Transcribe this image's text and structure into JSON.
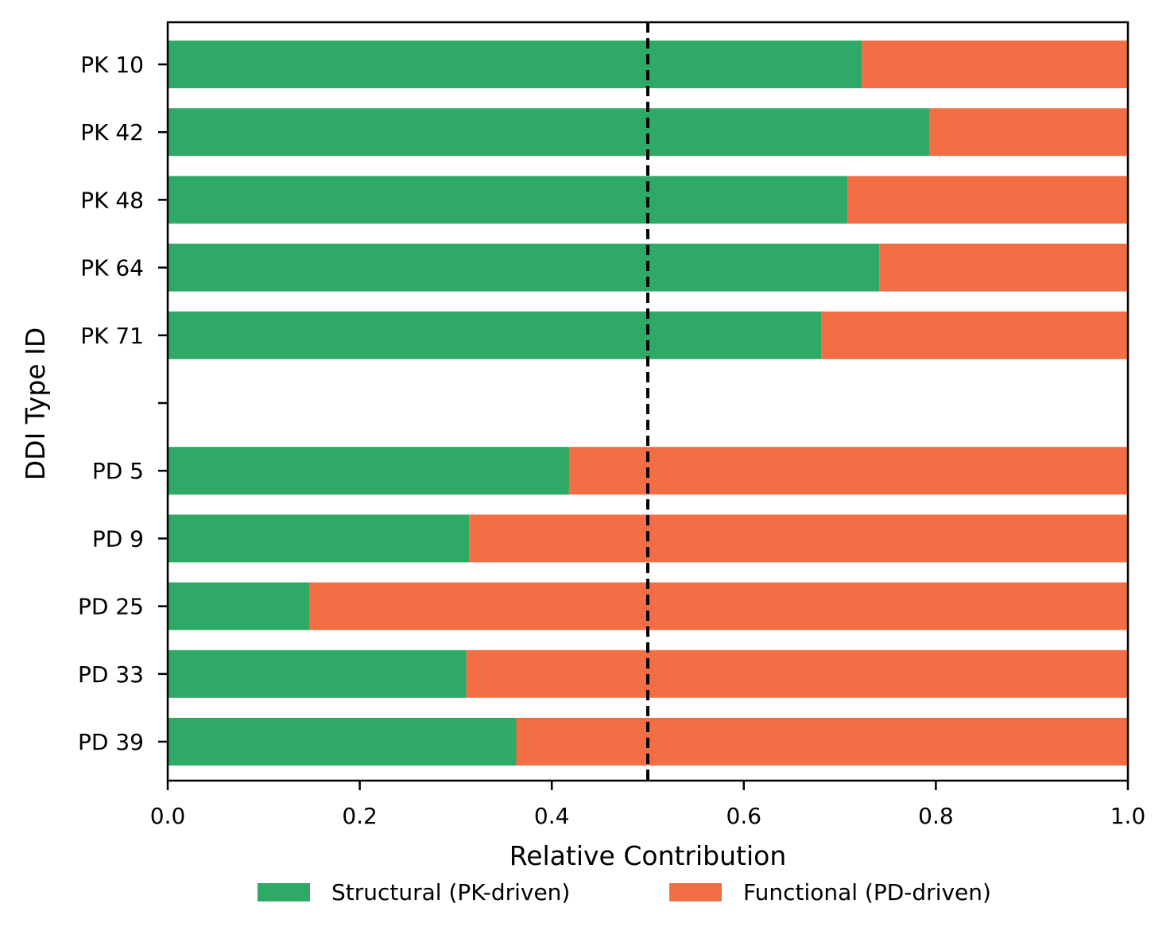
{
  "chart_data": {
    "type": "bar",
    "orientation": "horizontal",
    "stacked": true,
    "categories": [
      "PK 10",
      "PK 42",
      "PK 48",
      "PK 64",
      "PK 71",
      "",
      "PD 5",
      "PD 9",
      "PD 25",
      "PD 33",
      "PD 39"
    ],
    "series": [
      {
        "name": "Structural (PK-driven)",
        "color": "#2eaa66",
        "values": [
          0.723,
          0.793,
          0.708,
          0.741,
          0.681,
          null,
          0.418,
          0.314,
          0.148,
          0.311,
          0.363
        ]
      },
      {
        "name": "Functional (PD-driven)",
        "color": "#f26f46",
        "values": [
          0.277,
          0.207,
          0.292,
          0.259,
          0.319,
          null,
          0.582,
          0.686,
          0.852,
          0.689,
          0.637
        ]
      }
    ],
    "xlabel": "Relative Contribution",
    "ylabel": "DDI Type ID",
    "xlim": [
      0.0,
      1.0
    ],
    "xticks": [
      "0.0",
      "0.2",
      "0.4",
      "0.6",
      "0.8",
      "1.0"
    ],
    "reference_line": {
      "x": 0.5,
      "style": "dashed",
      "color": "#000000"
    },
    "legend": {
      "placement": "bottom-center",
      "columns": 2
    },
    "grid": false
  }
}
